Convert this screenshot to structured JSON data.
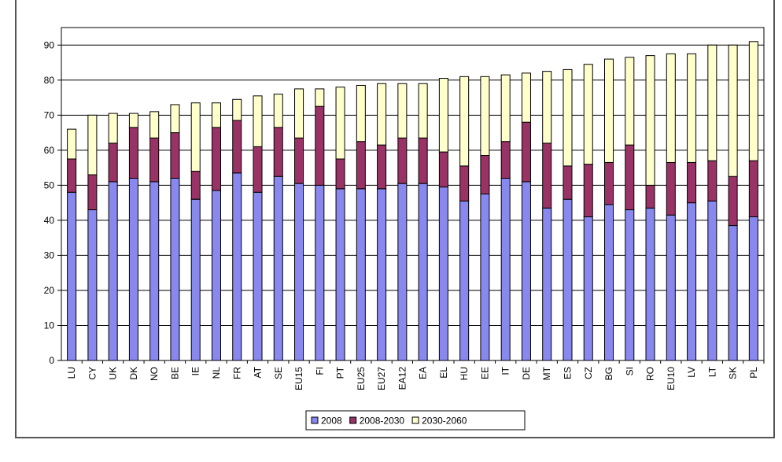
{
  "chart_data": {
    "type": "bar",
    "stacked": true,
    "title": "",
    "xlabel": "",
    "ylabel": "",
    "ylim": [
      0,
      95
    ],
    "yticks": [
      0,
      10,
      20,
      30,
      40,
      50,
      60,
      70,
      80,
      90
    ],
    "grid": "horizontal",
    "legend_position": "bottom",
    "categories": [
      "LU",
      "CY",
      "UK",
      "DK",
      "NO",
      "BE",
      "IE",
      "NL",
      "FR",
      "AT",
      "SE",
      "EU15",
      "FI",
      "PT",
      "EU25",
      "EU27",
      "EA12",
      "EA",
      "EL",
      "HU",
      "EE",
      "IT",
      "DE",
      "MT",
      "ES",
      "CZ",
      "BG",
      "SI",
      "RO",
      "EU10",
      "LV",
      "LT",
      "SK",
      "PL"
    ],
    "series": [
      {
        "name": "2008",
        "color": "#8888ee",
        "values": [
          48,
          43,
          51,
          52,
          51,
          52,
          46,
          48.5,
          53.5,
          48,
          52.5,
          50.5,
          50,
          49,
          49,
          49,
          50.5,
          50.5,
          49.5,
          45.5,
          47.5,
          52,
          51,
          43.5,
          46,
          41,
          44.5,
          43,
          43.5,
          41.5,
          45,
          45.5,
          38.5,
          41
        ]
      },
      {
        "name": "2008-2030",
        "color": "#993366",
        "values": [
          9.5,
          10,
          11,
          14.5,
          12.5,
          13,
          8,
          18,
          15,
          13,
          14,
          13,
          22.5,
          8.5,
          13.5,
          12.5,
          13,
          13,
          10,
          10,
          11,
          10.5,
          17,
          18.5,
          9.5,
          15,
          12,
          18.5,
          6.5,
          15,
          11.5,
          11.5,
          14,
          16
        ]
      },
      {
        "name": "2030-2060",
        "color": "#ffffcc",
        "values": [
          8.5,
          17,
          8.5,
          4,
          7.5,
          8,
          19.5,
          7,
          6,
          14.5,
          9.5,
          14,
          5,
          20.5,
          16,
          17.5,
          15.5,
          15.5,
          21,
          25.5,
          22.5,
          19,
          14,
          20.5,
          27.5,
          28.5,
          29.5,
          25,
          37,
          31,
          31,
          33,
          37.5,
          34
        ]
      }
    ]
  }
}
